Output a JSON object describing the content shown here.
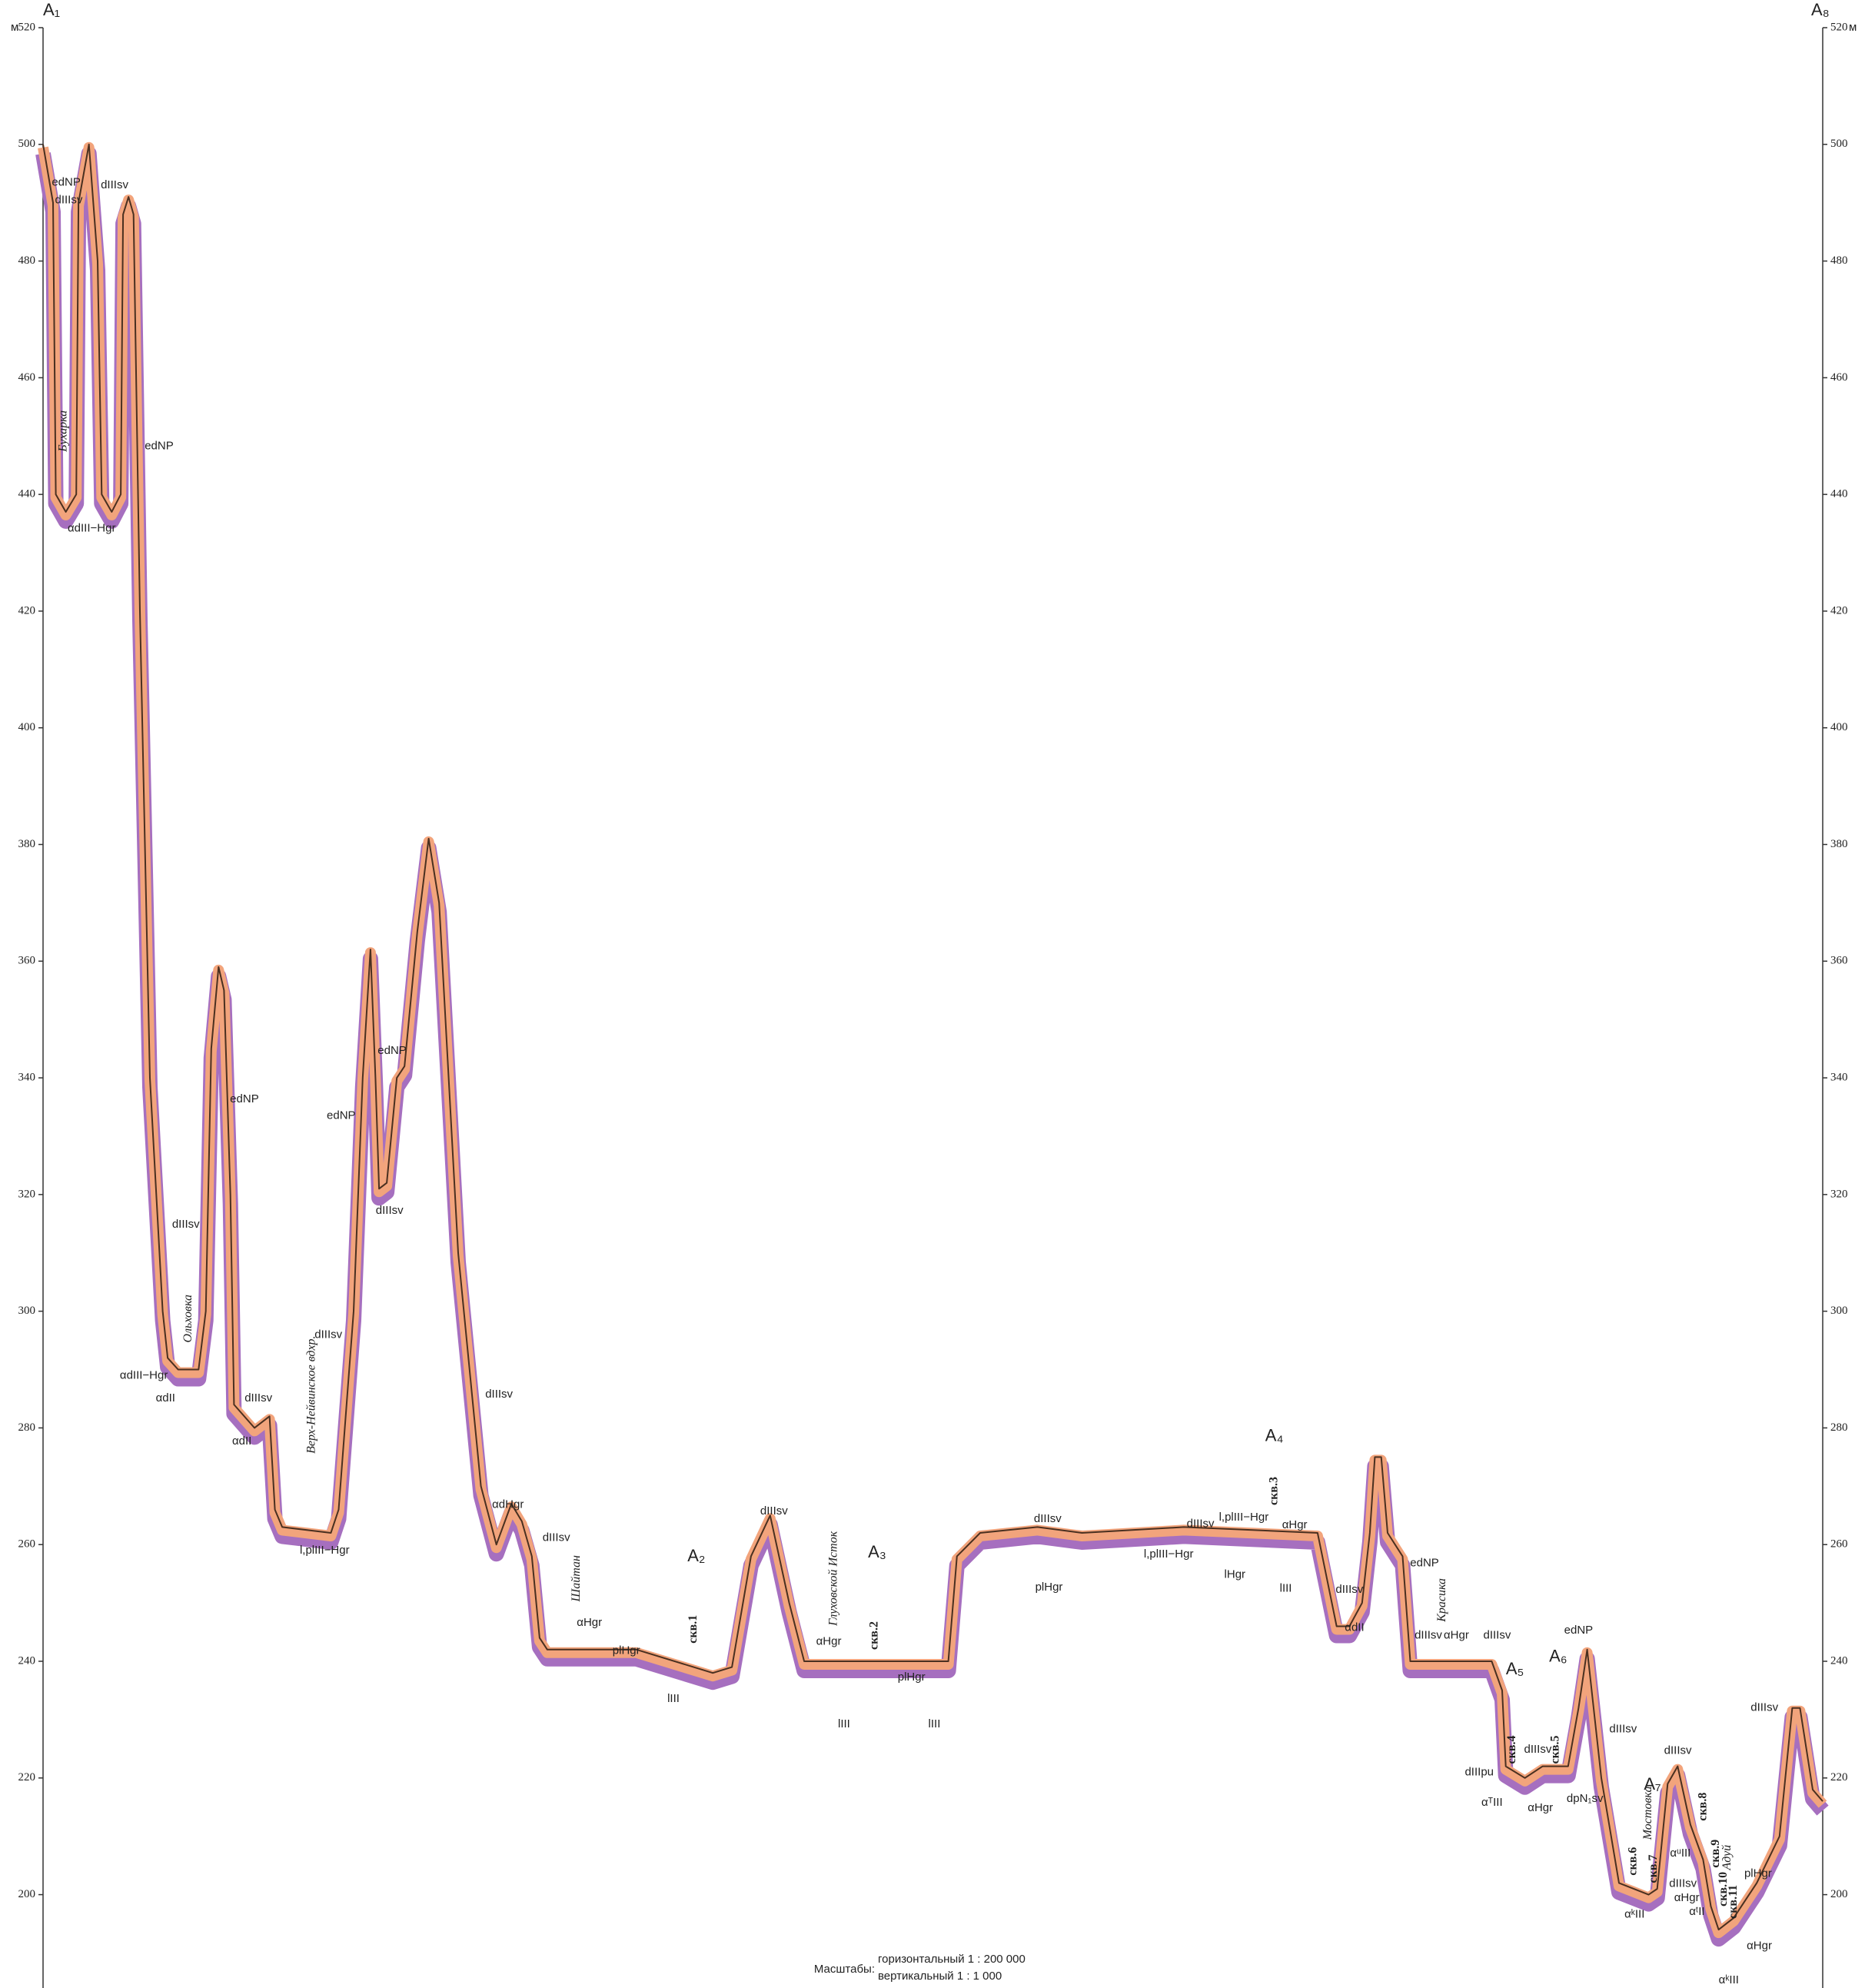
{
  "chart_data": {
    "type": "line",
    "start_label": "A₁",
    "end_label": "A₈",
    "y_unit": "м",
    "scale_caption": "Масштабы:",
    "scale_lines": [
      "горизонтальный 1 : 200 000",
      "вертикальный 1 : 1 000"
    ],
    "xlim": [
      0,
      39.14
    ],
    "ylim": [
      184,
      520
    ],
    "yticks": [
      200,
      220,
      240,
      260,
      280,
      300,
      320,
      340,
      360,
      380,
      400,
      420,
      440,
      460,
      480,
      500,
      520
    ],
    "color": "#4a3020",
    "x": [
      0,
      0.22,
      0.28,
      0.5,
      0.73,
      0.78,
      1.01,
      1.2,
      1.29,
      1.51,
      1.71,
      1.76,
      1.88,
      1.99,
      2.13,
      2.35,
      2.63,
      2.74,
      2.97,
      3.42,
      3.58,
      3.7,
      3.86,
      3.98,
      4.12,
      4.2,
      4.65,
      4.98,
      5.1,
      5.26,
      6.33,
      6.5,
      6.83,
      7.03,
      7.2,
      7.31,
      7.39,
      7.56,
      7.78,
      7.95,
      8.23,
      8.48,
      8.71,
      9.13,
      9.63,
      9.97,
      10.3,
      10.53,
      10.75,
      10.92,
      11.09,
      13.05,
      14.73,
      15.15,
      15.57,
      15.99,
      16.41,
      16.74,
      19.91,
      20.1,
      20.61,
      21.87,
      22.85,
      25.09,
      28.03,
      28.45,
      28.73,
      29.01,
      29.18,
      29.29,
      29.43,
      29.57,
      29.9,
      30.07,
      31.86,
      32.09,
      32.17,
      32.59,
      32.98,
      33.54,
      33.77,
      33.96,
      34.27,
      34.66,
      35.31,
      35.5,
      35.73,
      35.95,
      36.23,
      36.51,
      36.68,
      36.85,
      37.18,
      37.69,
      38.19,
      38.47,
      38.64,
      38.92,
      39.14
    ],
    "values": [
      500,
      490,
      440,
      437,
      440,
      490,
      500,
      480,
      440,
      437,
      440,
      488,
      491,
      488,
      420,
      340,
      300,
      292,
      290,
      290,
      300,
      345,
      359,
      355,
      320,
      284,
      280,
      282,
      266,
      263,
      262,
      266,
      300,
      340,
      362,
      340,
      321,
      322,
      340,
      342,
      365,
      381,
      370,
      310,
      270,
      260,
      267,
      264,
      258,
      244,
      242,
      242,
      238,
      239,
      258,
      265,
      250,
      240,
      240,
      258,
      262,
      263,
      262,
      263,
      262,
      246,
      246,
      250,
      262,
      275,
      275,
      262,
      258,
      240,
      240,
      235,
      222,
      220,
      222,
      222,
      232,
      242,
      220,
      202,
      200,
      201,
      219,
      222,
      212,
      206,
      198,
      194,
      196,
      202,
      210,
      232,
      232,
      218,
      216
    ],
    "labels": [
      "edNP",
      "dIIIsv",
      "dIIIsv",
      "Бухарка",
      "αdIII−Hgr",
      "edNP",
      "dIIIsv",
      "Ольховка",
      "αdIII−Hgr",
      "αdII",
      "dIIIsv",
      "αdII",
      "Верх-Нейвинское вдхр.",
      "l,plIII−Hgr",
      "edNP",
      "edNP",
      "edNP",
      "dIIIsv",
      "dIIIsv",
      "dIIIsv",
      "αdHgr",
      "dIIIsv",
      "Шайтан",
      "αHgr",
      "plHgr",
      "A₂",
      "скв.1",
      "lIII",
      "dIIIsv",
      "αHgr",
      "Глуховской Исток",
      "A₃",
      "скв.2",
      "plHgr",
      "lIII",
      "lIII",
      "dIIIsv",
      "plHgr",
      "l,plIII−Hgr",
      "dIIIsv",
      "l,plIII−Hgr",
      "αHgr",
      "A₄",
      "скв.3",
      "lHgr",
      "lIII",
      "edNP",
      "dIIIsv",
      "αdII",
      "Красика",
      "dIIIsv",
      "αHgr",
      "dIIIsv",
      "A₅",
      "A₆",
      "edNP",
      "скв.4",
      "скв.5",
      "dIIIsv",
      "dIIIpu",
      "dIIIsv",
      "αᵀIII",
      "αHgr",
      "dpN₁sv",
      "dIIIsv",
      "A₇",
      "Мостовка",
      "скв.6",
      "скв.7",
      "скв.8",
      "скв.9",
      "Адуй",
      "αᵘIII",
      "αHgr",
      "dIIIsv",
      "αᵗII",
      "скв.10",
      "скв.11",
      "αᵏIII",
      "plHgr",
      "αHgr",
      "αᵏIII",
      "dIIIsv"
    ]
  }
}
